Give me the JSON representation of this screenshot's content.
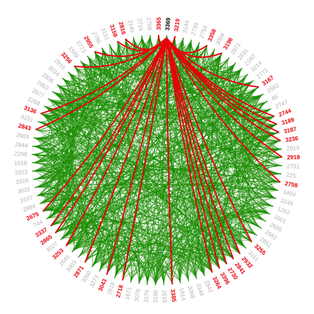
{
  "diagram": {
    "type": "chord",
    "focus_node": "3369",
    "colors": {
      "background_edge": "#1a8c00",
      "highlight_edge": "#e8000b",
      "label_default": "#b3b3b3",
      "label_highlight": "#e8000b",
      "label_focus": "#000000"
    },
    "nodes": [
      {
        "label": "3369",
        "role": "focus"
      },
      {
        "label": "3219",
        "role": "highlight"
      },
      {
        "label": "3144",
        "role": "default"
      },
      {
        "label": "2739",
        "role": "default"
      },
      {
        "label": "2754",
        "role": "default"
      },
      {
        "label": "3358",
        "role": "highlight"
      },
      {
        "label": "3004",
        "role": "default"
      },
      {
        "label": "3196",
        "role": "highlight"
      },
      {
        "label": "2871",
        "role": "default"
      },
      {
        "label": "2831",
        "role": "default"
      },
      {
        "label": "2160",
        "role": "default"
      },
      {
        "label": "3214",
        "role": "default"
      },
      {
        "label": "2771",
        "role": "default"
      },
      {
        "label": "3167",
        "role": "highlight"
      },
      {
        "label": "2582",
        "role": "default"
      },
      {
        "label": "46",
        "role": "default"
      },
      {
        "label": "2747",
        "role": "default"
      },
      {
        "label": "2744",
        "role": "highlight"
      },
      {
        "label": "3189",
        "role": "highlight"
      },
      {
        "label": "3187",
        "role": "highlight"
      },
      {
        "label": "3236",
        "role": "highlight"
      },
      {
        "label": "2914",
        "role": "default"
      },
      {
        "label": "2918",
        "role": "highlight"
      },
      {
        "label": "2751",
        "role": "default"
      },
      {
        "label": "225",
        "role": "default"
      },
      {
        "label": "2758",
        "role": "highlight"
      },
      {
        "label": "3404",
        "role": "default"
      },
      {
        "label": "3249",
        "role": "default"
      },
      {
        "label": "1262",
        "role": "default"
      },
      {
        "label": "1001",
        "role": "default"
      },
      {
        "label": "2695",
        "role": "default"
      },
      {
        "label": "2582",
        "role": "default"
      },
      {
        "label": "2851",
        "role": "default"
      },
      {
        "label": "3255",
        "role": "highlight"
      },
      {
        "label": "3111",
        "role": "default"
      },
      {
        "label": "2932",
        "role": "highlight"
      },
      {
        "label": "2841",
        "role": "highlight"
      },
      {
        "label": "2730",
        "role": "highlight"
      },
      {
        "label": "3396",
        "role": "highlight"
      },
      {
        "label": "3264",
        "role": "highlight"
      },
      {
        "label": "2842",
        "role": "default"
      },
      {
        "label": "3348",
        "role": "default"
      },
      {
        "label": "3068",
        "role": "default"
      },
      {
        "label": "1814",
        "role": "default"
      },
      {
        "label": "3385",
        "role": "highlight"
      },
      {
        "label": "2618",
        "role": "default"
      },
      {
        "label": "3198",
        "role": "default"
      },
      {
        "label": "3176",
        "role": "default"
      },
      {
        "label": "3076",
        "role": "default"
      },
      {
        "label": "1671",
        "role": "default"
      },
      {
        "label": "2718",
        "role": "highlight"
      },
      {
        "label": "2918",
        "role": "default"
      },
      {
        "label": "3043",
        "role": "highlight"
      },
      {
        "label": "3273",
        "role": "default"
      },
      {
        "label": "3060",
        "role": "default"
      },
      {
        "label": "2871",
        "role": "highlight"
      },
      {
        "label": "3003",
        "role": "default"
      },
      {
        "label": "2645",
        "role": "default"
      },
      {
        "label": "3253",
        "role": "highlight"
      },
      {
        "label": "3027",
        "role": "default"
      },
      {
        "label": "2865",
        "role": "highlight"
      },
      {
        "label": "3337",
        "role": "highlight"
      },
      {
        "label": "744",
        "role": "default"
      },
      {
        "label": "2675",
        "role": "highlight"
      },
      {
        "label": "2984",
        "role": "default"
      },
      {
        "label": "3107",
        "role": "default"
      },
      {
        "label": "3032",
        "role": "default"
      },
      {
        "label": "3326",
        "role": "default"
      },
      {
        "label": "3323",
        "role": "default"
      },
      {
        "label": "1618",
        "role": "default"
      },
      {
        "label": "2298",
        "role": "default"
      },
      {
        "label": "2844",
        "role": "default"
      },
      {
        "label": "2669",
        "role": "default"
      },
      {
        "label": "2843",
        "role": "highlight"
      },
      {
        "label": "3151",
        "role": "default"
      },
      {
        "label": "3136",
        "role": "highlight"
      },
      {
        "label": "3268",
        "role": "default"
      },
      {
        "label": "2877",
        "role": "default"
      },
      {
        "label": "2953",
        "role": "default"
      },
      {
        "label": "2836",
        "role": "default"
      },
      {
        "label": "3034",
        "role": "default"
      },
      {
        "label": "2916",
        "role": "default"
      },
      {
        "label": "3256",
        "role": "highlight"
      },
      {
        "label": "1569",
        "role": "default"
      },
      {
        "label": "2773",
        "role": "default"
      },
      {
        "label": "2955",
        "role": "highlight"
      },
      {
        "label": "2786",
        "role": "default"
      },
      {
        "label": "3151",
        "role": "default"
      },
      {
        "label": "3158",
        "role": "highlight"
      },
      {
        "label": "2816",
        "role": "highlight"
      },
      {
        "label": "3140",
        "role": "default"
      },
      {
        "label": "2716",
        "role": "default"
      },
      {
        "label": "2708",
        "role": "default"
      },
      {
        "label": "3365",
        "role": "highlight"
      }
    ]
  }
}
